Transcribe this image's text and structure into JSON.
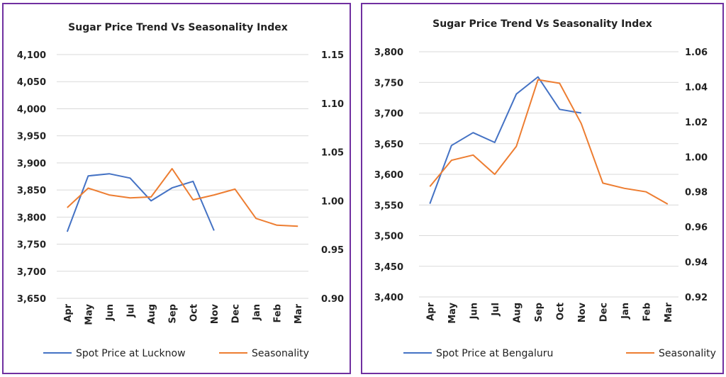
{
  "colors": {
    "price": "#4472c4",
    "seasonality": "#ed7d31",
    "grid": "#d9d9d9",
    "border": "#7030a0"
  },
  "chart_data": [
    {
      "type": "line",
      "title": "Sugar Price Trend Vs Seasonality Index",
      "categories": [
        "Apr",
        "May",
        "Jun",
        "Jul",
        "Aug",
        "Sep",
        "Oct",
        "Nov",
        "Dec",
        "Jan",
        "Feb",
        "Mar"
      ],
      "y_left": {
        "range": [
          3650,
          4100
        ],
        "ticks": [
          "3,650",
          "3,700",
          "3,750",
          "3,800",
          "3,850",
          "3,900",
          "3,950",
          "4,000",
          "4,050",
          "4,100"
        ]
      },
      "y_right": {
        "range": [
          0.9,
          1.15
        ],
        "ticks": [
          "0.90",
          "0.95",
          "1.00",
          "1.05",
          "1.10",
          "1.15"
        ]
      },
      "grid": true,
      "legend_position": "bottom",
      "series": [
        {
          "name": "Spot Price at Lucknow",
          "axis": "left",
          "values": [
            3773,
            3876,
            3880,
            3872,
            3830,
            3854,
            3866,
            3775,
            null,
            null,
            null,
            null
          ]
        },
        {
          "name": "Seasonality",
          "axis": "right",
          "values": [
            0.993,
            1.013,
            1.006,
            1.003,
            1.004,
            1.033,
            1.001,
            1.006,
            1.012,
            0.982,
            0.975,
            0.974
          ]
        }
      ]
    },
    {
      "type": "line",
      "title": "Sugar Price Trend Vs Seasonality Index",
      "categories": [
        "Apr",
        "May",
        "Jun",
        "Jul",
        "Aug",
        "Sep",
        "Oct",
        "Nov",
        "Dec",
        "Jan",
        "Feb",
        "Mar"
      ],
      "y_left": {
        "range": [
          3400,
          3800
        ],
        "ticks": [
          "3,400",
          "3,450",
          "3,500",
          "3,550",
          "3,600",
          "3,650",
          "3,700",
          "3,750",
          "3,800"
        ]
      },
      "y_right": {
        "range": [
          0.92,
          1.06
        ],
        "ticks": [
          "0.92",
          "0.94",
          "0.96",
          "0.98",
          "1.00",
          "1.02",
          "1.04",
          "1.06"
        ]
      },
      "grid": true,
      "legend_position": "bottom",
      "series": [
        {
          "name": "Spot Price at Bengaluru",
          "axis": "left",
          "values": [
            3552,
            3647,
            3668,
            3652,
            3731,
            3759,
            3706,
            3700,
            null,
            null,
            null,
            null
          ]
        },
        {
          "name": "Seasonality",
          "axis": "right",
          "values": [
            0.983,
            0.998,
            1.001,
            0.99,
            1.006,
            1.044,
            1.042,
            1.019,
            0.985,
            0.982,
            0.98,
            0.973
          ]
        }
      ]
    }
  ]
}
